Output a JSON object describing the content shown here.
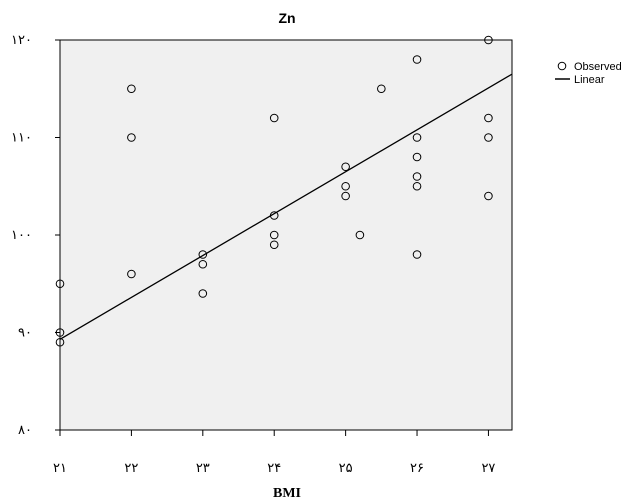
{
  "chart_data": {
    "type": "scatter",
    "title": "Zn",
    "xlabel": "BMI",
    "ylabel": "",
    "xlim": [
      21,
      27.33
    ],
    "ylim": [
      80,
      120
    ],
    "x_ticks": [
      21,
      22,
      23,
      24,
      25,
      26,
      27
    ],
    "x_tick_labels": [
      "۲۱",
      "۲۲",
      "۲۳",
      "۲۴",
      "۲۵",
      "۲۶",
      "۲۷"
    ],
    "y_ticks": [
      80,
      90,
      100,
      110,
      120
    ],
    "y_tick_labels": [
      "۸۰",
      "۹۰",
      "۱۰۰",
      "۱۱۰",
      "۱۲۰"
    ],
    "grid": false,
    "legend_position": "top-right",
    "legend": [
      "Observed",
      "Linear"
    ],
    "series": [
      {
        "name": "Observed",
        "points": [
          [
            21,
            95
          ],
          [
            21,
            90
          ],
          [
            21,
            89
          ],
          [
            22,
            115
          ],
          [
            22,
            110
          ],
          [
            22,
            96
          ],
          [
            23,
            98
          ],
          [
            23,
            97
          ],
          [
            23,
            94
          ],
          [
            24,
            112
          ],
          [
            24,
            102
          ],
          [
            24,
            100
          ],
          [
            24,
            99
          ],
          [
            25,
            107
          ],
          [
            25,
            105
          ],
          [
            25,
            104
          ],
          [
            25.2,
            100
          ],
          [
            25.5,
            115
          ],
          [
            26,
            118
          ],
          [
            26,
            110
          ],
          [
            26,
            108
          ],
          [
            26,
            106
          ],
          [
            26,
            105
          ],
          [
            26,
            98
          ],
          [
            27,
            120
          ],
          [
            27,
            112
          ],
          [
            27,
            110
          ],
          [
            27,
            104
          ]
        ]
      },
      {
        "name": "Linear",
        "line": [
          [
            21,
            89.3
          ],
          [
            27.33,
            116.5
          ]
        ]
      }
    ],
    "colors": {
      "plot_background": "#f0f0f0",
      "marker_stroke": "#000000",
      "line": "#000000"
    }
  }
}
